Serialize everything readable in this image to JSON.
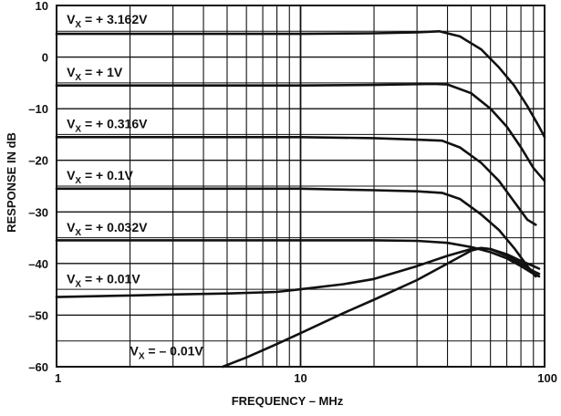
{
  "chart_data": {
    "type": "line",
    "xlabel": "FREQUENCY – MHz",
    "ylabel": "RESPONSE IN dB",
    "x_scale": "log",
    "xlim": [
      1,
      100
    ],
    "ylim": [
      -60,
      10
    ],
    "grid": true,
    "legend": "none",
    "x_ticks": [
      {
        "value": 1,
        "label": "1"
      },
      {
        "value": 10,
        "label": "10"
      },
      {
        "value": 100,
        "label": "100"
      }
    ],
    "y_ticks": [
      {
        "value": 10,
        "label": "10"
      },
      {
        "value": 0,
        "label": "0"
      },
      {
        "value": -10,
        "label": "–10"
      },
      {
        "value": -20,
        "label": "–20"
      },
      {
        "value": -30,
        "label": "–30"
      },
      {
        "value": -40,
        "label": "–40"
      },
      {
        "value": -50,
        "label": "–50"
      },
      {
        "value": -60,
        "label": "–60"
      }
    ],
    "series": [
      {
        "name": "VX = +3.162V",
        "label_text": "+ 3.162V",
        "label_at": {
          "x": 1.1,
          "y": 6.5
        },
        "points": [
          [
            1,
            4.5
          ],
          [
            10,
            4.5
          ],
          [
            20,
            4.6
          ],
          [
            30,
            4.8
          ],
          [
            37,
            5.0
          ],
          [
            45,
            4.0
          ],
          [
            55,
            1.5
          ],
          [
            65,
            -2.0
          ],
          [
            75,
            -5.5
          ],
          [
            85,
            -9.5
          ],
          [
            95,
            -13.5
          ],
          [
            100,
            -15.5
          ]
        ]
      },
      {
        "name": "VX = +1V",
        "label_text": "+ 1V",
        "label_at": {
          "x": 1.1,
          "y": -3.8
        },
        "points": [
          [
            1,
            -5.5
          ],
          [
            10,
            -5.5
          ],
          [
            20,
            -5.4
          ],
          [
            35,
            -5.2
          ],
          [
            40,
            -5.3
          ],
          [
            50,
            -7.0
          ],
          [
            60,
            -10.0
          ],
          [
            70,
            -13.5
          ],
          [
            80,
            -17.5
          ],
          [
            90,
            -21.5
          ],
          [
            100,
            -24.0
          ]
        ]
      },
      {
        "name": "VX = +0.316V",
        "label_text": "+ 0.316V",
        "label_at": {
          "x": 1.1,
          "y": -13.8
        },
        "points": [
          [
            1,
            -15.5
          ],
          [
            10,
            -15.5
          ],
          [
            20,
            -15.7
          ],
          [
            30,
            -16.0
          ],
          [
            38,
            -16.2
          ],
          [
            45,
            -17.5
          ],
          [
            55,
            -20.5
          ],
          [
            65,
            -24.0
          ],
          [
            75,
            -28.0
          ],
          [
            85,
            -31.5
          ],
          [
            92,
            -32.5
          ]
        ]
      },
      {
        "name": "VX = +0.1V",
        "label_text": "+ 0.1V",
        "label_at": {
          "x": 1.1,
          "y": -23.8
        },
        "points": [
          [
            1,
            -25.5
          ],
          [
            10,
            -25.5
          ],
          [
            20,
            -25.8
          ],
          [
            30,
            -26.0
          ],
          [
            38,
            -26.3
          ],
          [
            45,
            -27.5
          ],
          [
            55,
            -30.5
          ],
          [
            65,
            -33.5
          ],
          [
            75,
            -37.0
          ],
          [
            85,
            -40.5
          ],
          [
            92,
            -42.5
          ]
        ]
      },
      {
        "name": "VX = +0.032V",
        "label_text": "+ 0.032V",
        "label_at": {
          "x": 1.1,
          "y": -33.8
        },
        "points": [
          [
            1,
            -35.5
          ],
          [
            10,
            -35.5
          ],
          [
            20,
            -35.5
          ],
          [
            30,
            -35.6
          ],
          [
            40,
            -36.0
          ],
          [
            50,
            -36.8
          ],
          [
            60,
            -37.8
          ],
          [
            70,
            -39.0
          ],
          [
            80,
            -40.5
          ],
          [
            90,
            -42.0
          ],
          [
            95,
            -42.5
          ]
        ]
      },
      {
        "name": "VX = +0.01V",
        "label_text": "+ 0.01V",
        "label_at": {
          "x": 1.1,
          "y": -43.8
        },
        "points": [
          [
            1,
            -46.5
          ],
          [
            2,
            -46.2
          ],
          [
            3,
            -46.0
          ],
          [
            5,
            -45.8
          ],
          [
            8,
            -45.5
          ],
          [
            10,
            -45.0
          ],
          [
            15,
            -44.0
          ],
          [
            20,
            -43.0
          ],
          [
            30,
            -40.5
          ],
          [
            40,
            -38.5
          ],
          [
            50,
            -37.2
          ],
          [
            55,
            -37.0
          ],
          [
            60,
            -37.2
          ],
          [
            70,
            -38.5
          ],
          [
            80,
            -40.0
          ],
          [
            90,
            -41.5
          ],
          [
            95,
            -42.0
          ]
        ]
      },
      {
        "name": "VX = −0.01V",
        "label_text": "– 0.01V",
        "label_at": {
          "x": 2.0,
          "y": -57.8
        },
        "points": [
          [
            4.8,
            -60.0
          ],
          [
            6,
            -58.2
          ],
          [
            8,
            -55.6
          ],
          [
            10,
            -53.5
          ],
          [
            15,
            -49.6
          ],
          [
            20,
            -47.0
          ],
          [
            30,
            -43.2
          ],
          [
            40,
            -40.0
          ],
          [
            50,
            -37.5
          ],
          [
            55,
            -37.0
          ],
          [
            60,
            -37.2
          ],
          [
            70,
            -38.2
          ],
          [
            80,
            -39.5
          ],
          [
            90,
            -40.5
          ],
          [
            95,
            -41.0
          ]
        ]
      }
    ]
  }
}
